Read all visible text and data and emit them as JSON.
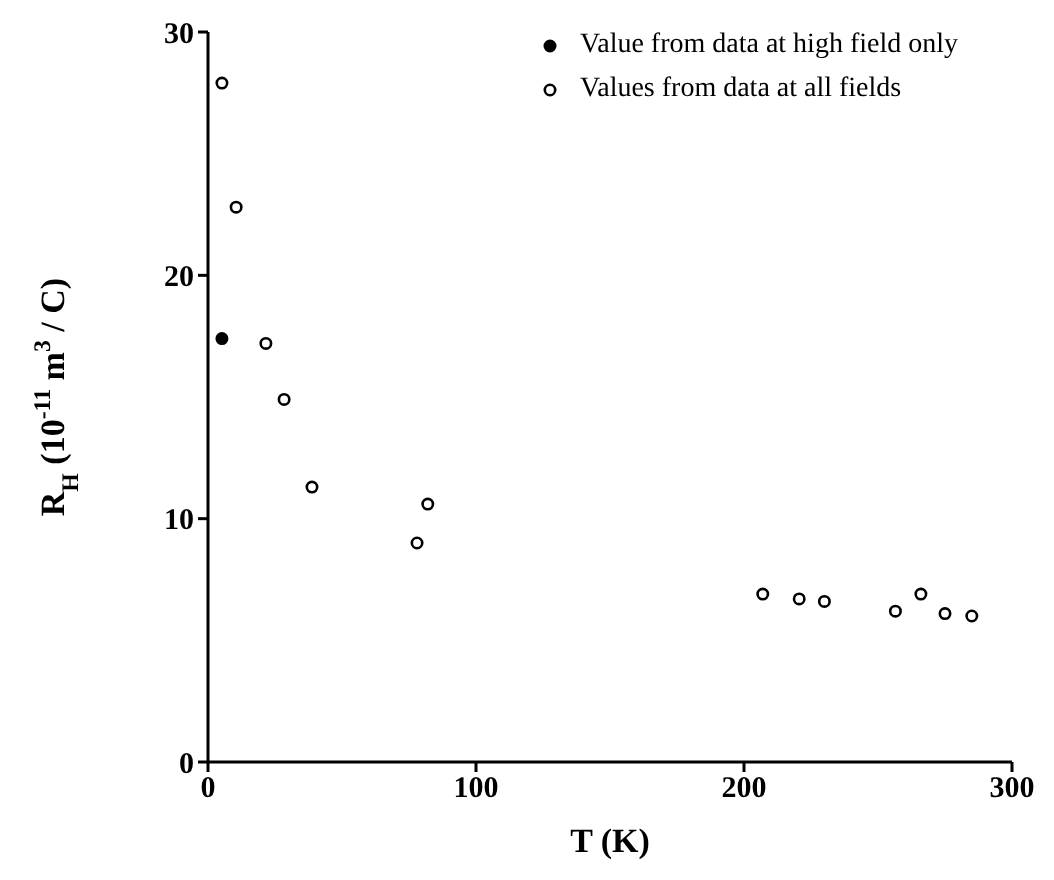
{
  "chart_data": {
    "type": "scatter",
    "xlabel": "T (K)",
    "ylabel": "R$_{H}$ (10$^{-11}$ m$^{3}$ / C)",
    "xlim": [
      0,
      300
    ],
    "xticks": [
      0,
      100,
      200,
      300
    ],
    "ylim": [
      0,
      30
    ],
    "yticks": [
      0,
      10,
      20,
      30
    ],
    "marker": "circle",
    "legend": "top right",
    "grid": false,
    "series": [
      {
        "name": "Value from data at high field only",
        "color": "#000000",
        "x": [
          5.2
        ],
        "values": [
          17.4
        ]
      },
      {
        "name": "Values from data at all fields",
        "color": "#000000",
        "x": [
          5.2,
          10.5,
          21.6,
          28.4,
          38.8,
          78,
          82,
          207,
          220.6,
          230,
          256.5,
          266,
          275,
          285
        ],
        "values": [
          27.9,
          22.8,
          17.2,
          14.9,
          11.3,
          9.0,
          10.6,
          6.9,
          6.7,
          6.6,
          6.2,
          6.9,
          6.1,
          6.0
        ]
      }
    ]
  }
}
